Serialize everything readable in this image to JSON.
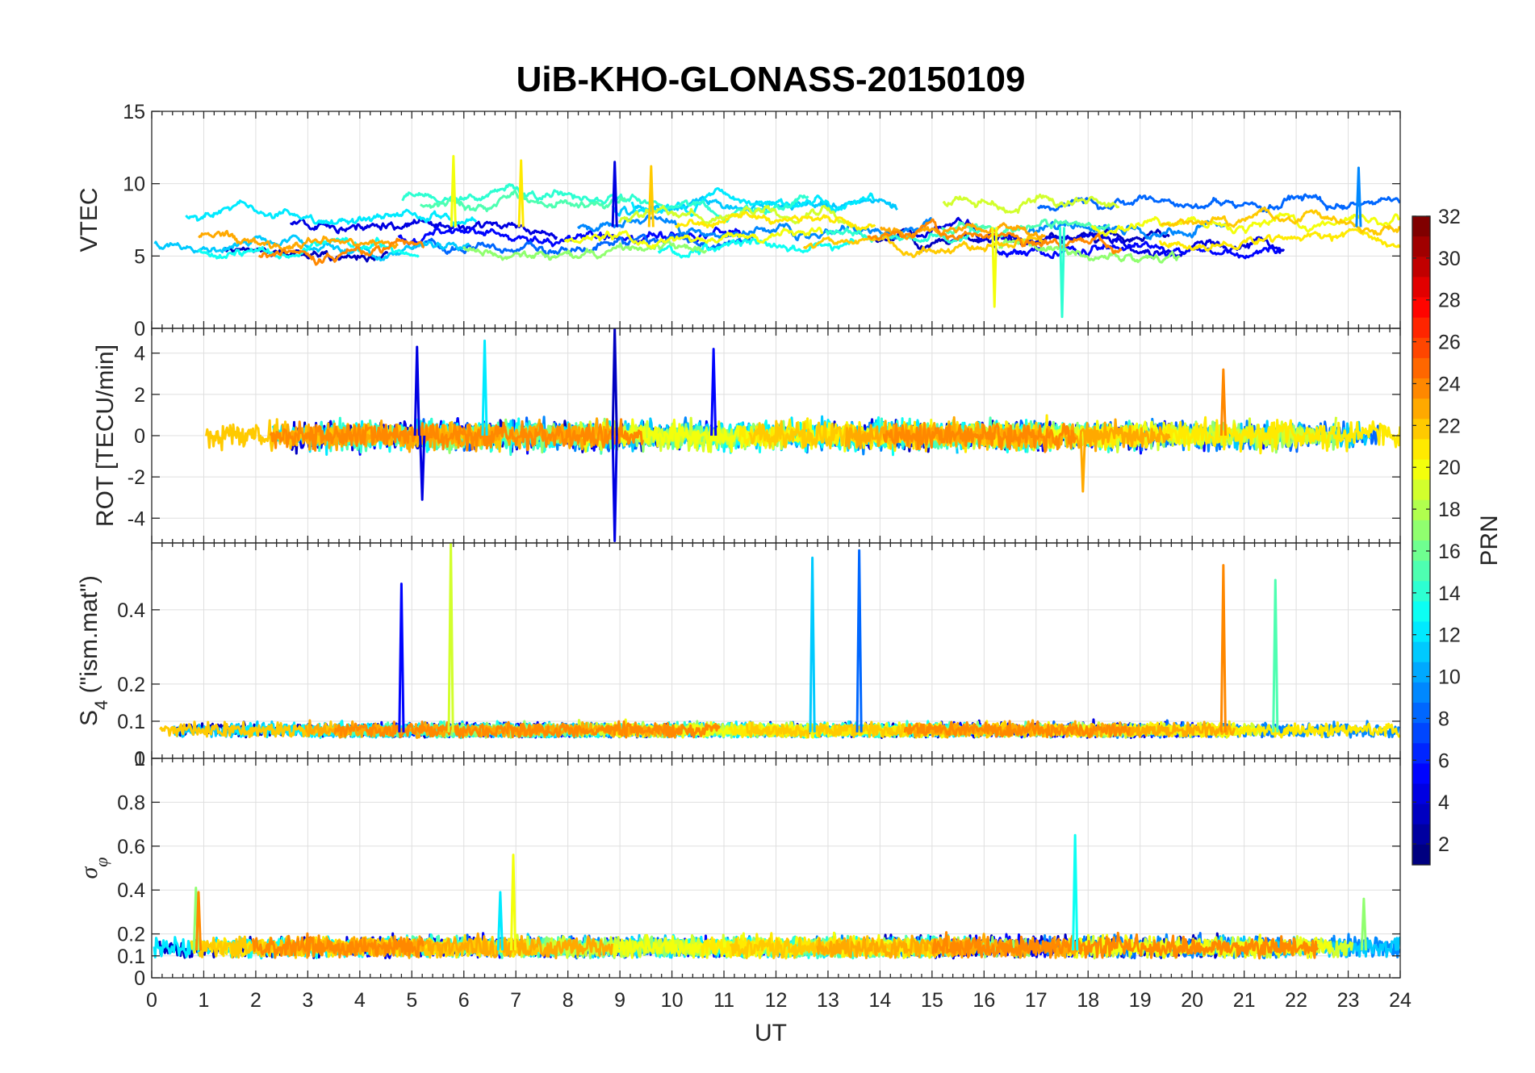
{
  "chart_data": {
    "type": "line",
    "title": "UiB-KHO-GLONASS-20150109",
    "xlabel": "UT",
    "xlim": [
      0,
      24
    ],
    "xticks": [
      "0",
      "1",
      "2",
      "3",
      "4",
      "5",
      "6",
      "7",
      "8",
      "9",
      "10",
      "11",
      "12",
      "13",
      "14",
      "15",
      "16",
      "17",
      "18",
      "19",
      "20",
      "21",
      "22",
      "23",
      "24"
    ],
    "grid": true,
    "series_colored_by": "PRN",
    "colorbar": {
      "label": "PRN",
      "colormap": "jet",
      "range": [
        1,
        32
      ],
      "ticks": [
        "2",
        "4",
        "6",
        "8",
        "10",
        "12",
        "14",
        "16",
        "18",
        "20",
        "22",
        "24",
        "26",
        "28",
        "30",
        "32"
      ],
      "placement": "right"
    },
    "panels": [
      {
        "id": "vtec",
        "ylabel": "VTEC",
        "ylim": [
          0,
          15
        ],
        "yticks": [
          0,
          5,
          10,
          15
        ],
        "yticklabels": [
          "0",
          "5",
          "10",
          "15"
        ],
        "typical_range": [
          2,
          12
        ],
        "peaks": [
          {
            "x": 5.8,
            "y": 11.9,
            "prn": 20
          },
          {
            "x": 7.1,
            "y": 11.6,
            "prn": 21
          },
          {
            "x": 8.9,
            "y": 11.5,
            "prn": 4
          },
          {
            "x": 9.6,
            "y": 11.2,
            "prn": 22
          },
          {
            "x": 23.2,
            "y": 11.1,
            "prn": 9
          }
        ],
        "minima": [
          {
            "x": 17.5,
            "y": 0.8,
            "prn": 14
          },
          {
            "x": 16.2,
            "y": 1.5,
            "prn": 20
          }
        ]
      },
      {
        "id": "rot",
        "ylabel": "ROT [TECU/min]",
        "ylim": [
          -5.2,
          5.2
        ],
        "yticks": [
          -4,
          -2,
          0,
          2,
          4
        ],
        "yticklabels": [
          "-4",
          "-2",
          "0",
          "2",
          "4"
        ],
        "typical_range": [
          -1.5,
          1.5
        ],
        "spikes": [
          {
            "x": 5.1,
            "y": 4.3,
            "prn": 4
          },
          {
            "x": 6.4,
            "y": 4.6,
            "prn": 12
          },
          {
            "x": 8.9,
            "y": 5.2,
            "prn": 3
          },
          {
            "x": 10.8,
            "y": 4.2,
            "prn": 5
          },
          {
            "x": 8.9,
            "y": -5.1,
            "prn": 4
          },
          {
            "x": 5.2,
            "y": -3.1,
            "prn": 4
          },
          {
            "x": 20.6,
            "y": 3.2,
            "prn": 24
          },
          {
            "x": 17.9,
            "y": -2.7,
            "prn": 23
          }
        ]
      },
      {
        "id": "s4",
        "ylabel": "S",
        "ylabel_subscript": "4",
        "ylabel_suffix": " (\"ism.mat\")",
        "ylim": [
          0,
          0.58
        ],
        "yticks": [
          0,
          0.1,
          0.2,
          0.4
        ],
        "yticklabels": [
          "0",
          "0.1",
          "0.2",
          "0.4"
        ],
        "typical_range": [
          0.04,
          0.1
        ],
        "spikes": [
          {
            "x": 4.8,
            "y": 0.47,
            "prn": 5
          },
          {
            "x": 5.75,
            "y": 0.58,
            "prn": 19
          },
          {
            "x": 12.7,
            "y": 0.54,
            "prn": 11
          },
          {
            "x": 13.6,
            "y": 0.56,
            "prn": 8
          },
          {
            "x": 20.6,
            "y": 0.52,
            "prn": 24
          },
          {
            "x": 21.6,
            "y": 0.48,
            "prn": 15
          }
        ]
      },
      {
        "id": "sigma_phi",
        "ylabel": "σ",
        "ylabel_subscript": "φ",
        "ylim": [
          0,
          1
        ],
        "yticks": [
          0,
          0.1,
          0.2,
          0.4,
          0.6,
          0.8
        ],
        "yticklabels": [
          "0",
          "0.1",
          "0.2",
          "0.4",
          "0.6",
          "0.8"
        ],
        "top_label": "1",
        "typical_range": [
          0.05,
          0.2
        ],
        "spikes": [
          {
            "x": 0.85,
            "y": 0.41,
            "prn": 17
          },
          {
            "x": 0.9,
            "y": 0.39,
            "prn": 24
          },
          {
            "x": 6.95,
            "y": 0.56,
            "prn": 20
          },
          {
            "x": 6.7,
            "y": 0.39,
            "prn": 12
          },
          {
            "x": 17.75,
            "y": 0.65,
            "prn": 13
          },
          {
            "x": 23.3,
            "y": 0.36,
            "prn": 17
          }
        ]
      }
    ],
    "prn_colors_used": [
      3,
      4,
      5,
      8,
      9,
      11,
      12,
      13,
      14,
      15,
      17,
      19,
      20,
      21,
      22,
      23,
      24
    ]
  }
}
